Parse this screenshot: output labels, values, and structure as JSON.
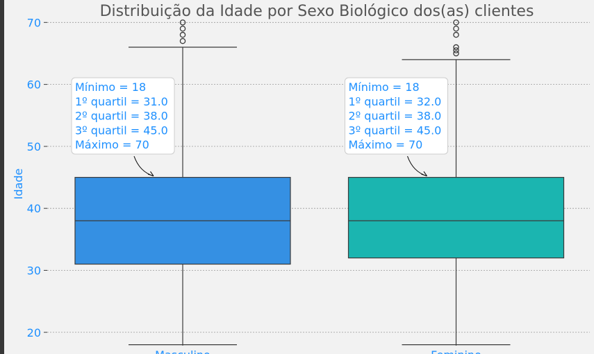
{
  "chart_data": {
    "type": "box",
    "title": "Distribuição da Idade por Sexo Biológico dos(as) clientes",
    "xlabel": "",
    "ylabel": "Idade",
    "ylim": [
      16.5,
      72.5
    ],
    "yticks": [
      20,
      30,
      40,
      50,
      60,
      70
    ],
    "grid": true,
    "categories": [
      "Masculino",
      "Feminino"
    ],
    "series": [
      {
        "category": "Masculino",
        "color": "#3590e3",
        "min": 18,
        "q1": 31,
        "median": 38,
        "q3": 45,
        "max": 70,
        "whisker_low": 18,
        "whisker_high": 66,
        "outliers": [
          67,
          68,
          69,
          70
        ],
        "annotation": [
          "Mínimo = 18",
          "1º quartil = 31.0",
          "2º quartil = 38.0",
          "3º quartil = 45.0",
          "Máximo = 70"
        ]
      },
      {
        "category": "Feminino",
        "color": "#1bb5b0",
        "min": 18,
        "q1": 32,
        "median": 38,
        "q3": 45,
        "max": 70,
        "whisker_low": 18,
        "whisker_high": 64,
        "outliers": [
          65,
          65.5,
          66,
          68,
          69,
          70
        ],
        "annotation": [
          "Mínimo = 18",
          "1º quartil = 32.0",
          "2º quartil = 38.0",
          "3º quartil = 45.0",
          "Máximo = 70"
        ]
      }
    ]
  }
}
